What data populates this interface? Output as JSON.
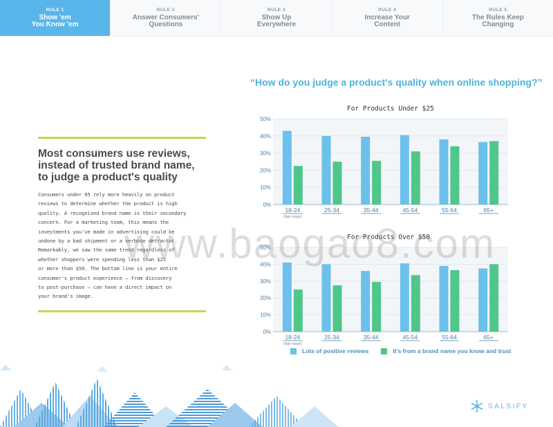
{
  "nav": [
    {
      "rule": "RULE 1",
      "title1": "Show 'em",
      "title2": "You Know 'em",
      "active": true
    },
    {
      "rule": "RULE 2",
      "title1": "Answer Consumers'",
      "title2": "Questions",
      "active": false
    },
    {
      "rule": "RULE 3",
      "title1": "Show Up",
      "title2": "Everywhere",
      "active": false
    },
    {
      "rule": "RULE 4",
      "title1": "Increase Your",
      "title2": "Content",
      "active": false
    },
    {
      "rule": "RULE 5",
      "title1": "The Rules Keep",
      "title2": "Changing",
      "active": false
    }
  ],
  "left": {
    "headline1": "Most consumers  use reviews,",
    "headline2": "instead of trusted brand name,",
    "headline3": "to judge a product's  quality",
    "body_lines": [
      "Consumers  under  65 rely more heavily on product",
      "reviews to determine  whether  the product is high",
      "quality. A recognized  brand  name is their secondary",
      "concern.  For a marketing  team,  this  means  the",
      "investments  you've made in advertising  could  be",
      "undone  by a bad shipment  or a verbose detractor.",
      "Remarkably,   we  saw the  same trend  regardless of",
      "whether  shoppers   were spending  less than $25",
      "or more than $50.  The bottom line is your entire",
      "consumer's  product  experience — from discovery",
      "to  post-purchase  – can have a direct  impact  on",
      "your   brand's  image."
    ]
  },
  "question": "“How do you judge a product's quality when online shopping?”",
  "watermark": "www.baogao8.com",
  "logo": {
    "text": "SALSIFY"
  },
  "colors": {
    "series1": "#6cc0ec",
    "series2": "#4fc78a",
    "accent": "#5ab6ea",
    "rule": "#c7d64f"
  },
  "legend": [
    {
      "label": "Lots of positive reviews",
      "color": "#6cc0ec"
    },
    {
      "label": "It's from a brand name you know and trust",
      "color": "#4fc78a"
    }
  ],
  "chart_data": [
    {
      "type": "bar",
      "title": "For Products  Under  $25",
      "categories": [
        "18-24",
        "25-34",
        "35-44",
        "45-54",
        "55-64",
        "65+"
      ],
      "x_note": "(Age range)",
      "y_ticks": [
        "0%",
        "10%",
        "20%",
        "30%",
        "40%",
        "50%"
      ],
      "ylim": [
        0,
        50
      ],
      "series": [
        {
          "name": "Lots of positive reviews",
          "values": [
            43,
            40,
            39.5,
            40.5,
            38,
            36.5
          ]
        },
        {
          "name": "It's from a brand name you know and trust",
          "values": [
            22.5,
            25,
            25.5,
            31,
            34,
            37
          ]
        }
      ]
    },
    {
      "type": "bar",
      "title": "For Products  Over  $50",
      "categories": [
        "18-24",
        "25-34",
        "35-44",
        "45-54",
        "55-64",
        "65+"
      ],
      "x_note": "(Age range)",
      "y_ticks": [
        "0%",
        "10%",
        "20%",
        "30%",
        "40%",
        "50%"
      ],
      "ylim": [
        0,
        50
      ],
      "series": [
        {
          "name": "Lots of positive reviews",
          "values": [
            41,
            40,
            36,
            40.5,
            39,
            37.5
          ]
        },
        {
          "name": "It's from a brand name you know and trust",
          "values": [
            25,
            27.5,
            29.5,
            33.5,
            36.5,
            40
          ]
        }
      ]
    }
  ]
}
